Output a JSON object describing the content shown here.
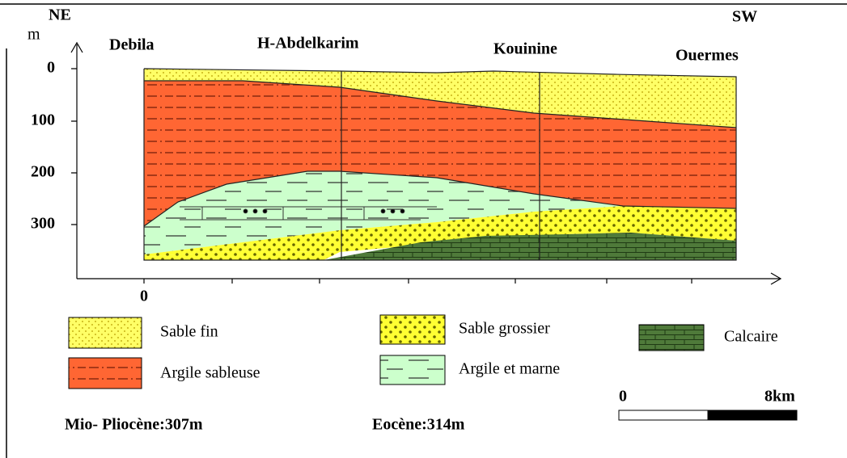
{
  "header": {
    "left": "NE",
    "right": "SW",
    "unit": "m"
  },
  "places": [
    "Debila",
    "H-Abdelkarim",
    "Kouinine",
    "Ouermes"
  ],
  "depth_axis": {
    "ticks": [
      0,
      100,
      200,
      300
    ]
  },
  "distance_axis": {
    "origin": 0
  },
  "legend": [
    {
      "label": "Sable fin"
    },
    {
      "label": "Argile sableuse"
    },
    {
      "label": "Sable grossier"
    },
    {
      "label": "Argile et marne"
    },
    {
      "label": "Calcaire"
    }
  ],
  "notes": [
    "Mio- Pliocène:307m",
    "Eocène:314m"
  ],
  "scale_bar": {
    "start": "0",
    "end": "8km"
  }
}
